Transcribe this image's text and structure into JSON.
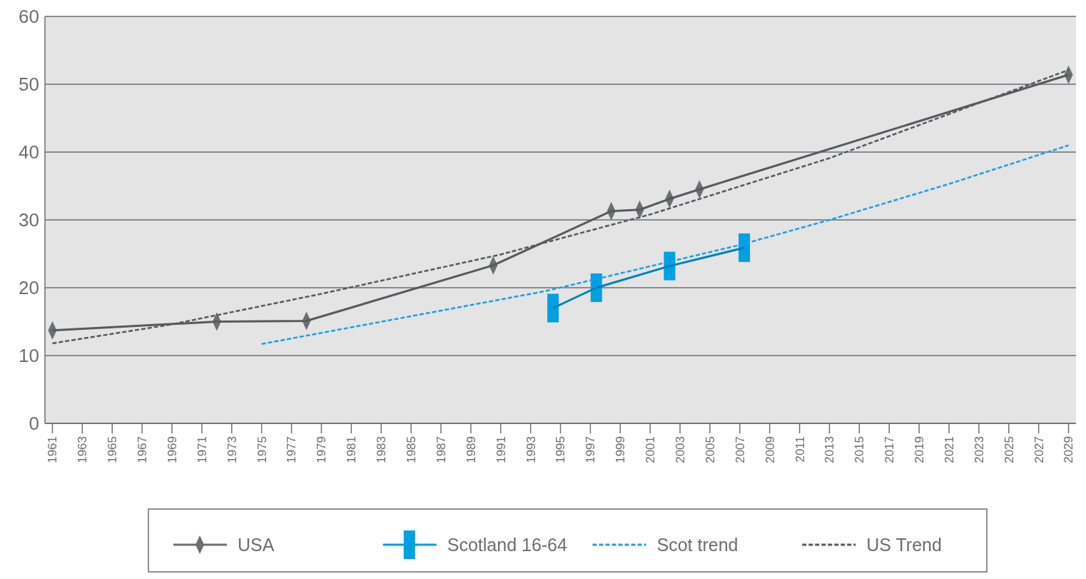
{
  "chart_data": {
    "type": "line",
    "xlim": [
      1960.5,
      2029.5
    ],
    "xticks": [
      1961,
      1963,
      1965,
      1967,
      1969,
      1971,
      1973,
      1975,
      1977,
      1979,
      1981,
      1983,
      1985,
      1987,
      1989,
      1991,
      1993,
      1995,
      1997,
      1999,
      2001,
      2003,
      2005,
      2007,
      2009,
      2011,
      2013,
      2015,
      2017,
      2019,
      2021,
      2023,
      2025,
      2027,
      2029
    ],
    "ylim": [
      0,
      60
    ],
    "yticks": [
      0,
      10,
      20,
      30,
      40,
      50,
      60
    ],
    "grid": "y",
    "legend": "bottom",
    "series": [
      {
        "name": "USA",
        "color": "#6d6e71",
        "marker": "diamond",
        "line_style": "solid",
        "x": [
          1961,
          1972,
          1978,
          1990.5,
          1998.4,
          2000.3,
          2002.3,
          2004.3,
          2029
        ],
        "values": [
          13.7,
          15.0,
          15.1,
          23.3,
          31.3,
          31.5,
          33.1,
          34.5,
          51.4
        ]
      },
      {
        "name": "Scotland 16-64",
        "color": "#00a0e3",
        "marker": "square",
        "line_style": "solid",
        "x": [
          1994.5,
          1997.4,
          2002.3,
          2007.3
        ],
        "values": [
          17.0,
          20.0,
          23.2,
          25.9
        ]
      },
      {
        "name": "Scot trend",
        "color": "#1ba1e2",
        "marker": "none",
        "line_style": "dashed",
        "x": [
          1975,
          1985,
          1994,
          2007,
          2013,
          2021,
          2029
        ],
        "values": [
          11.7,
          15.8,
          19.5,
          26.3,
          30.0,
          35.3,
          41.0
        ]
      },
      {
        "name": "US Trend",
        "color": "#58595b",
        "marker": "none",
        "line_style": "dashed",
        "x": [
          1961,
          1969,
          1979,
          1991,
          2001,
          2013,
          2029
        ],
        "values": [
          11.8,
          14.6,
          19.1,
          24.9,
          30.8,
          39.1,
          52.1
        ]
      }
    ]
  }
}
